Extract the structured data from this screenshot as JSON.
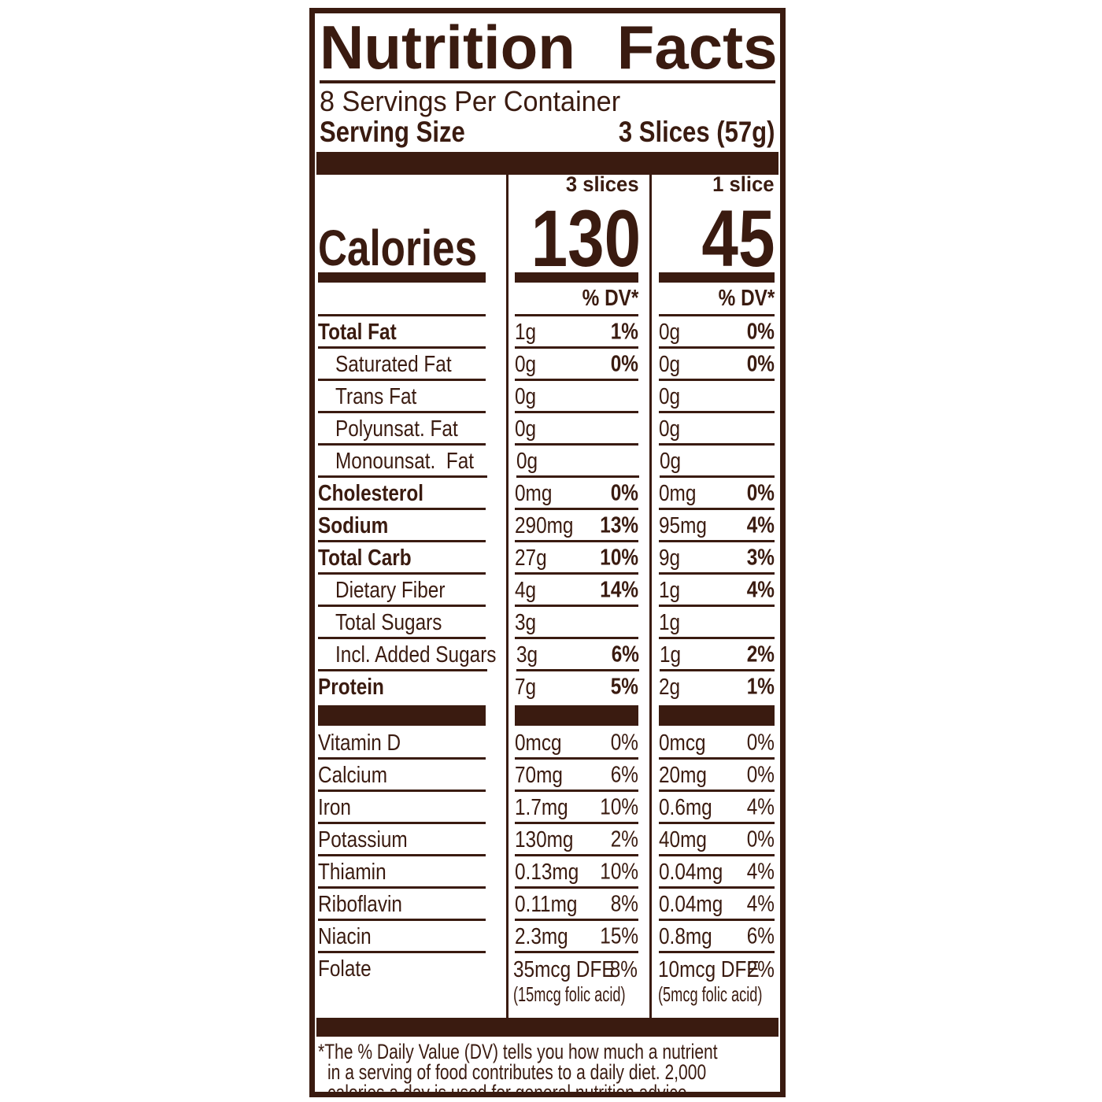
{
  "colors": {
    "ink": "#3A1B10",
    "background": "#FFFFFF"
  },
  "label": {
    "title": "Nutrition Facts",
    "servings_per_container": "8 Servings Per Container",
    "serving_size_label": "Serving Size",
    "serving_size_value": "3 Slices (57g)",
    "calories_label": "Calories",
    "columns": [
      {
        "header": "3 slices",
        "calories": "130",
        "dv_header": "% DV*"
      },
      {
        "header": "1 slice",
        "calories": "45",
        "dv_header": "% DV*"
      }
    ],
    "rows": [
      {
        "name": "Total Fat",
        "emphasis": "bold",
        "indent": false,
        "group": "macro",
        "values": [
          {
            "amount": "1g",
            "pct": "1%"
          },
          {
            "amount": "0g",
            "pct": "0%"
          }
        ]
      },
      {
        "name": "Saturated Fat",
        "emphasis": "plain",
        "indent": true,
        "group": "macro",
        "values": [
          {
            "amount": "0g",
            "pct": "0%"
          },
          {
            "amount": "0g",
            "pct": "0%"
          }
        ]
      },
      {
        "name": "Trans Fat",
        "emphasis": "plain",
        "indent": true,
        "group": "macro",
        "values": [
          {
            "amount": "0g",
            "pct": ""
          },
          {
            "amount": "0g",
            "pct": ""
          }
        ]
      },
      {
        "name": "Polyunsat. Fat",
        "emphasis": "plain",
        "indent": true,
        "group": "macro",
        "values": [
          {
            "amount": "0g",
            "pct": ""
          },
          {
            "amount": "0g",
            "pct": ""
          }
        ]
      },
      {
        "name": "Monounsat.  Fat",
        "emphasis": "plain",
        "indent": true,
        "group": "macro",
        "values": [
          {
            "amount": "0g",
            "pct": ""
          },
          {
            "amount": "0g",
            "pct": ""
          }
        ]
      },
      {
        "name": "Cholesterol",
        "emphasis": "bold",
        "indent": false,
        "group": "macro",
        "values": [
          {
            "amount": "0mg",
            "pct": "0%"
          },
          {
            "amount": "0mg",
            "pct": "0%"
          }
        ]
      },
      {
        "name": "Sodium",
        "emphasis": "bold",
        "indent": false,
        "group": "macro",
        "values": [
          {
            "amount": "290mg",
            "pct": "13%"
          },
          {
            "amount": "95mg",
            "pct": "4%"
          }
        ]
      },
      {
        "name": "Total Carb",
        "emphasis": "bold",
        "indent": false,
        "group": "macro",
        "values": [
          {
            "amount": "27g",
            "pct": "10%"
          },
          {
            "amount": "9g",
            "pct": "3%"
          }
        ]
      },
      {
        "name": "Dietary Fiber",
        "emphasis": "plain",
        "indent": true,
        "group": "macro",
        "values": [
          {
            "amount": "4g",
            "pct": "14%"
          },
          {
            "amount": "1g",
            "pct": "4%"
          }
        ]
      },
      {
        "name": "Total Sugars",
        "emphasis": "plain",
        "indent": true,
        "group": "macro",
        "values": [
          {
            "amount": "3g",
            "pct": ""
          },
          {
            "amount": "1g",
            "pct": ""
          }
        ]
      },
      {
        "name": "Incl. Added Sugars",
        "emphasis": "plain",
        "indent": true,
        "group": "macro",
        "values": [
          {
            "amount": "3g",
            "pct": "6%"
          },
          {
            "amount": "1g",
            "pct": "2%"
          }
        ]
      },
      {
        "name": "Protein",
        "emphasis": "bold",
        "indent": false,
        "group": "macro",
        "values": [
          {
            "amount": "7g",
            "pct": "5%"
          },
          {
            "amount": "2g",
            "pct": "1%"
          }
        ]
      },
      {
        "name": "Vitamin D",
        "emphasis": "plain",
        "indent": false,
        "group": "micro",
        "values": [
          {
            "amount": "0mcg",
            "pct": "0%"
          },
          {
            "amount": "0mcg",
            "pct": "0%"
          }
        ]
      },
      {
        "name": "Calcium",
        "emphasis": "plain",
        "indent": false,
        "group": "micro",
        "values": [
          {
            "amount": "70mg",
            "pct": "6%"
          },
          {
            "amount": "20mg",
            "pct": "0%"
          }
        ]
      },
      {
        "name": "Iron",
        "emphasis": "plain",
        "indent": false,
        "group": "micro",
        "values": [
          {
            "amount": "1.7mg",
            "pct": "10%"
          },
          {
            "amount": "0.6mg",
            "pct": "4%"
          }
        ]
      },
      {
        "name": "Potassium",
        "emphasis": "plain",
        "indent": false,
        "group": "micro",
        "values": [
          {
            "amount": "130mg",
            "pct": "2%"
          },
          {
            "amount": "40mg",
            "pct": "0%"
          }
        ]
      },
      {
        "name": "Thiamin",
        "emphasis": "plain",
        "indent": false,
        "group": "micro",
        "values": [
          {
            "amount": "0.13mg",
            "pct": "10%"
          },
          {
            "amount": "0.04mg",
            "pct": "4%"
          }
        ]
      },
      {
        "name": "Riboflavin",
        "emphasis": "plain",
        "indent": false,
        "group": "micro",
        "values": [
          {
            "amount": "0.11mg",
            "pct": "8%"
          },
          {
            "amount": "0.04mg",
            "pct": "4%"
          }
        ]
      },
      {
        "name": "Niacin",
        "emphasis": "plain",
        "indent": false,
        "group": "micro",
        "values": [
          {
            "amount": "2.3mg",
            "pct": "15%"
          },
          {
            "amount": "0.8mg",
            "pct": "6%"
          }
        ]
      },
      {
        "name": "Folate",
        "emphasis": "plain",
        "indent": false,
        "group": "micro",
        "values": [
          {
            "amount": "35mcg DFE",
            "pct": "8%",
            "note": "(15mcg folic acid)"
          },
          {
            "amount": "10mcg DFE",
            "pct": "2%",
            "note": "(5mcg folic acid)"
          }
        ]
      }
    ],
    "footnote_lines": [
      "*The % Daily Value (DV) tells you how much a nutrient",
      "in a serving of food contributes to a daily diet. 2,000",
      "calories a day is used for general nutrition advice."
    ]
  }
}
